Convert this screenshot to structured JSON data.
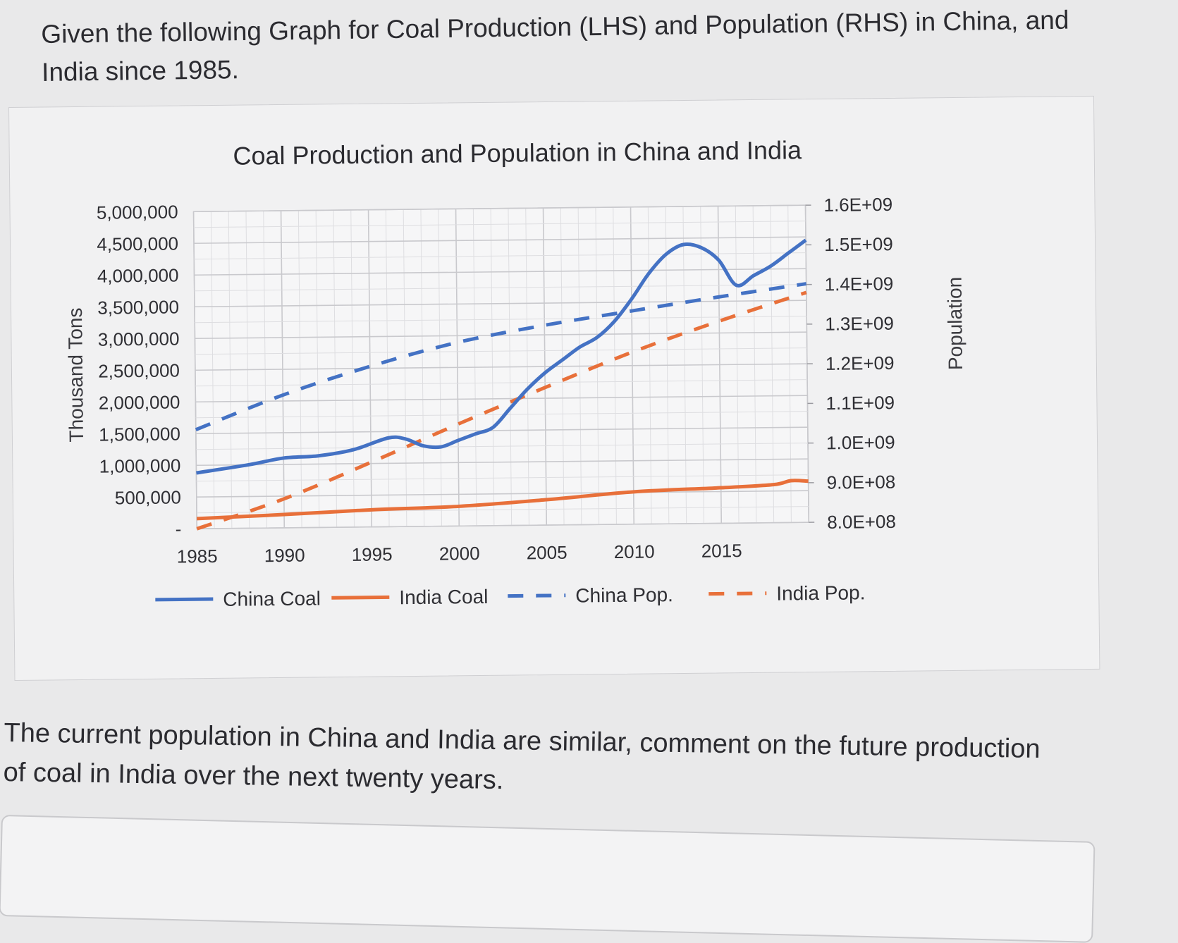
{
  "question": {
    "text": "Given the following Graph for Coal Production (LHS) and Population (RHS) in China, and India since 1985."
  },
  "followup": {
    "text": "The current population in China and India are similar, comment on the future production of coal in India over the next twenty years."
  },
  "chart_data": {
    "type": "line",
    "title": "Coal Production and Population in China and India",
    "xlabel": "",
    "ylabel": "Thousand Tons",
    "y2label": "Population",
    "x_ticks": [
      "1985",
      "1990",
      "1995",
      "2000",
      "2005",
      "2010",
      "2015"
    ],
    "xlim": [
      1985,
      2020
    ],
    "ylim": [
      0,
      5000000
    ],
    "y2lim": [
      800000000,
      1600000000
    ],
    "y_ticks": [
      "-",
      "500,000",
      "1,000,000",
      "1,500,000",
      "2,000,000",
      "2,500,000",
      "3,000,000",
      "3,500,000",
      "4,000,000",
      "4,500,000",
      "5,000,000"
    ],
    "y2_ticks": [
      "8.0E+08",
      "9.0E+08",
      "1.0E+09",
      "1.1E+09",
      "1.2E+09",
      "1.3E+09",
      "1.4E+09",
      "1.5E+09",
      "1.6E+09"
    ],
    "grid": true,
    "legend_position": "bottom",
    "series": [
      {
        "name": "China Coal",
        "axis": "left",
        "style": "solid",
        "color": "#4472c4",
        "x": [
          1985,
          1988,
          1990,
          1992,
          1994,
          1996,
          1997,
          1998,
          1999,
          2000,
          2001,
          2002,
          2003,
          2004,
          2005,
          2006,
          2007,
          2008,
          2009,
          2010,
          2011,
          2012,
          2013,
          2014,
          2015,
          2016,
          2017,
          2018,
          2019,
          2020
        ],
        "y": [
          880000,
          1000000,
          1100000,
          1130000,
          1220000,
          1400000,
          1380000,
          1270000,
          1250000,
          1350000,
          1450000,
          1550000,
          1850000,
          2150000,
          2400000,
          2600000,
          2800000,
          2950000,
          3200000,
          3550000,
          3950000,
          4250000,
          4400000,
          4350000,
          4150000,
          3750000,
          3900000,
          4050000,
          4250000,
          4450000
        ]
      },
      {
        "name": "India Coal",
        "axis": "left",
        "style": "solid",
        "color": "#e8703a",
        "x": [
          1985,
          1990,
          1995,
          2000,
          2005,
          2010,
          2015,
          2018,
          2019,
          2020
        ],
        "y": [
          160000,
          210000,
          270000,
          310000,
          400000,
          510000,
          560000,
          600000,
          660000,
          650000
        ]
      },
      {
        "name": "China Pop.",
        "axis": "right",
        "style": "dashed",
        "color": "#4472c4",
        "x": [
          1985,
          1990,
          1995,
          2000,
          2005,
          2010,
          2015,
          2020
        ],
        "y": [
          1050000000,
          1135000000,
          1205000000,
          1263000000,
          1304000000,
          1338000000,
          1371000000,
          1402000000
        ]
      },
      {
        "name": "India Pop.",
        "axis": "right",
        "style": "dashed",
        "color": "#e8703a",
        "x": [
          1985,
          1990,
          1995,
          2000,
          2005,
          2010,
          2015,
          2020
        ],
        "y": [
          800000000,
          873000000,
          963000000,
          1057000000,
          1147000000,
          1234000000,
          1310000000,
          1380000000
        ]
      }
    ]
  }
}
